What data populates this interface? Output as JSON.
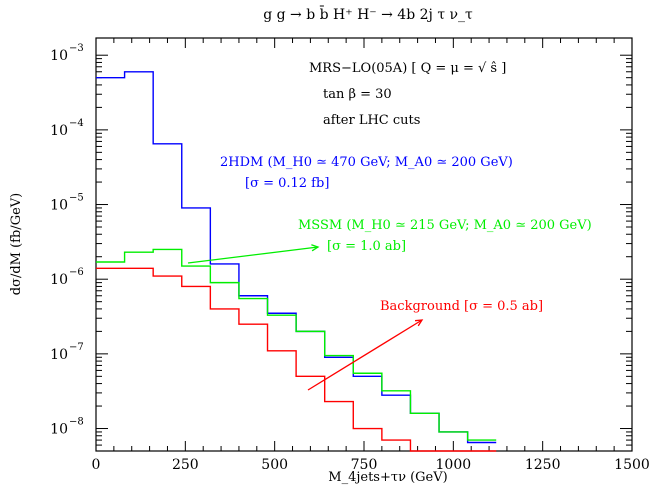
{
  "chart_data": {
    "type": "line",
    "title": "g g → b b̄ H⁺ H⁻ → 4b 2j τ ν_τ",
    "xlabel": "M_4jets+τν (GeV)",
    "ylabel": "dσ/dM (fb/GeV)",
    "xlim": [
      0,
      1500
    ],
    "ylim": [
      5e-09,
      0.0017
    ],
    "yscale": "log",
    "grid": false,
    "bin_edges": [
      0,
      80,
      160,
      240,
      320,
      400,
      480,
      560,
      640,
      720,
      800,
      880,
      960,
      1040,
      1120
    ],
    "x_ticks": [
      {
        "v": 0,
        "label": "0"
      },
      {
        "v": 250,
        "label": "250"
      },
      {
        "v": 500,
        "label": "500"
      },
      {
        "v": 750,
        "label": "750"
      },
      {
        "v": 1000,
        "label": "1000"
      },
      {
        "v": 1250,
        "label": "1250"
      },
      {
        "v": 1500,
        "label": "1500"
      }
    ],
    "y_ticks": [
      {
        "v": 1e-08,
        "base": "10",
        "exp": "−8"
      },
      {
        "v": 1e-07,
        "base": "10",
        "exp": "−7"
      },
      {
        "v": 1e-06,
        "base": "10",
        "exp": "−6"
      },
      {
        "v": 1e-05,
        "base": "10",
        "exp": "−5"
      },
      {
        "v": 0.0001,
        "base": "10",
        "exp": "−4"
      },
      {
        "v": 0.001,
        "base": "10",
        "exp": "−3"
      }
    ],
    "series": [
      {
        "name": "2HDM",
        "color": "#0000ff",
        "values": [
          0.0005,
          0.0006,
          6.5e-05,
          9e-06,
          1.6e-06,
          6e-07,
          3.5e-07,
          2e-07,
          9e-08,
          5e-08,
          2.8e-08,
          1.6e-08,
          9e-09,
          6.5e-09
        ]
      },
      {
        "name": "MSSM",
        "color": "#00ee00",
        "values": [
          1.7e-06,
          2.3e-06,
          2.5e-06,
          1.5e-06,
          9e-07,
          5.5e-07,
          3.3e-07,
          2e-07,
          9.5e-08,
          5.5e-08,
          3.2e-08,
          1.6e-08,
          9e-09,
          7e-09
        ]
      },
      {
        "name": "Background",
        "color": "#ff0000",
        "values": [
          1.4e-06,
          1.4e-06,
          1.1e-06,
          8e-07,
          4e-07,
          2.5e-07,
          1.1e-07,
          5e-08,
          2.3e-08,
          1e-08,
          7e-09,
          5e-09,
          5e-09,
          5e-09
        ]
      }
    ],
    "annotations": {
      "info_line1": "MRS−LO(05A) [ Q = μ = √ ŝ ]",
      "info_line2": "tan β = 30",
      "info_line3": "after LHC cuts",
      "hdm_line1": "2HDM (M_H0 ≃ 470 GeV; M_A0 ≃ 200 GeV)",
      "hdm_line2": "[σ = 0.12 fb]",
      "mssm_line1": "MSSM (M_H0 ≃ 215 GeV; M_A0 ≃ 200 GeV)",
      "mssm_line2": "[σ = 1.0 ab]",
      "bkg_line1": "Background [σ = 0.5 ab]"
    }
  }
}
